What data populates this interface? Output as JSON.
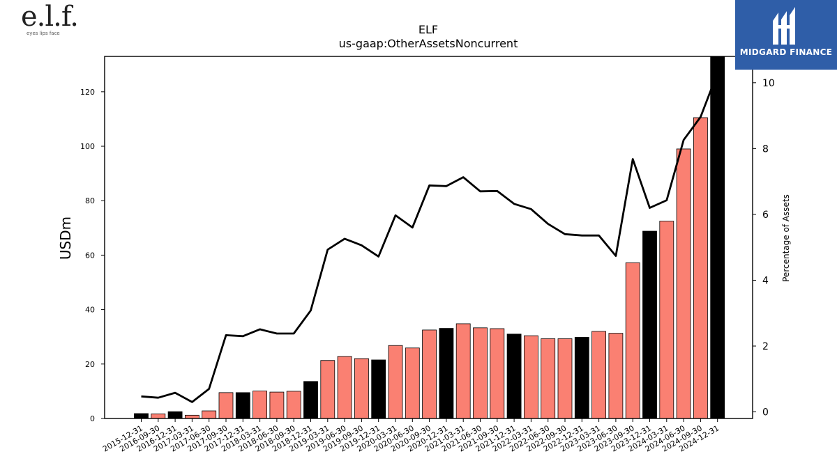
{
  "brand": {
    "left_logo_text": "e.l.f.",
    "left_logo_tagline": "eyes lips face",
    "right_logo_text": "MIDGARD FINANCE",
    "right_logo_bg": "#2f5ea8"
  },
  "chart_data": {
    "type": "bar",
    "title": "ELF",
    "subtitle": "us-gaap:OtherAssetsNoncurrent",
    "ylabel": "USDm",
    "y2label": "Percentage of Assets",
    "ylim": [
      0,
      133
    ],
    "y2lim": [
      -0.2,
      10.8
    ],
    "yticks": [
      0,
      20,
      40,
      60,
      80,
      100,
      120
    ],
    "y2ticks": [
      0,
      2,
      4,
      6,
      8,
      10
    ],
    "grid": false,
    "colors": {
      "quarter": "#fa8072",
      "year_end": "#000000",
      "line": "#000000"
    },
    "categories": [
      "2015-12-31",
      "2016-09-30",
      "2016-12-31",
      "2017-03-31",
      "2017-06-30",
      "2017-09-30",
      "2017-12-31",
      "2018-03-31",
      "2018-06-30",
      "2018-09-30",
      "2018-12-31",
      "2019-03-31",
      "2019-06-30",
      "2019-09-30",
      "2019-12-31",
      "2020-03-31",
      "2020-06-30",
      "2020-09-30",
      "2020-12-31",
      "2021-03-31",
      "2021-06-30",
      "2021-09-30",
      "2021-12-31",
      "2022-03-31",
      "2022-06-30",
      "2022-09-30",
      "2022-12-31",
      "2023-03-31",
      "2023-06-30",
      "2023-09-30",
      "2023-12-31",
      "2024-03-31",
      "2024-06-30",
      "2024-09-30",
      "2024-12-31"
    ],
    "series": [
      {
        "type": "bar",
        "values": [
          1.8,
          1.7,
          2.5,
          1.2,
          2.8,
          9.5,
          9.5,
          10.1,
          9.7,
          10.0,
          13.6,
          21.3,
          22.8,
          22.0,
          21.5,
          26.8,
          25.9,
          32.5,
          33.1,
          34.8,
          33.3,
          33.0,
          31.0,
          30.4,
          29.3,
          29.3,
          29.8,
          32.0,
          31.3,
          57.2,
          68.8,
          72.5,
          99.0,
          110.5,
          133.0
        ],
        "year_end": [
          true,
          false,
          true,
          false,
          false,
          false,
          true,
          false,
          false,
          false,
          true,
          false,
          false,
          false,
          true,
          false,
          false,
          false,
          true,
          false,
          false,
          false,
          true,
          false,
          false,
          false,
          true,
          false,
          false,
          false,
          true,
          false,
          false,
          false,
          true
        ]
      },
      {
        "type": "line",
        "values": [
          0.47,
          0.43,
          0.58,
          0.3,
          0.7,
          2.33,
          2.3,
          2.51,
          2.38,
          2.38,
          3.08,
          4.93,
          5.26,
          5.06,
          4.72,
          5.97,
          5.6,
          6.88,
          6.86,
          7.13,
          6.7,
          6.71,
          6.32,
          6.16,
          5.71,
          5.4,
          5.36,
          5.36,
          4.74,
          7.68,
          6.2,
          6.43,
          8.26,
          8.96,
          10.3
        ]
      }
    ]
  }
}
